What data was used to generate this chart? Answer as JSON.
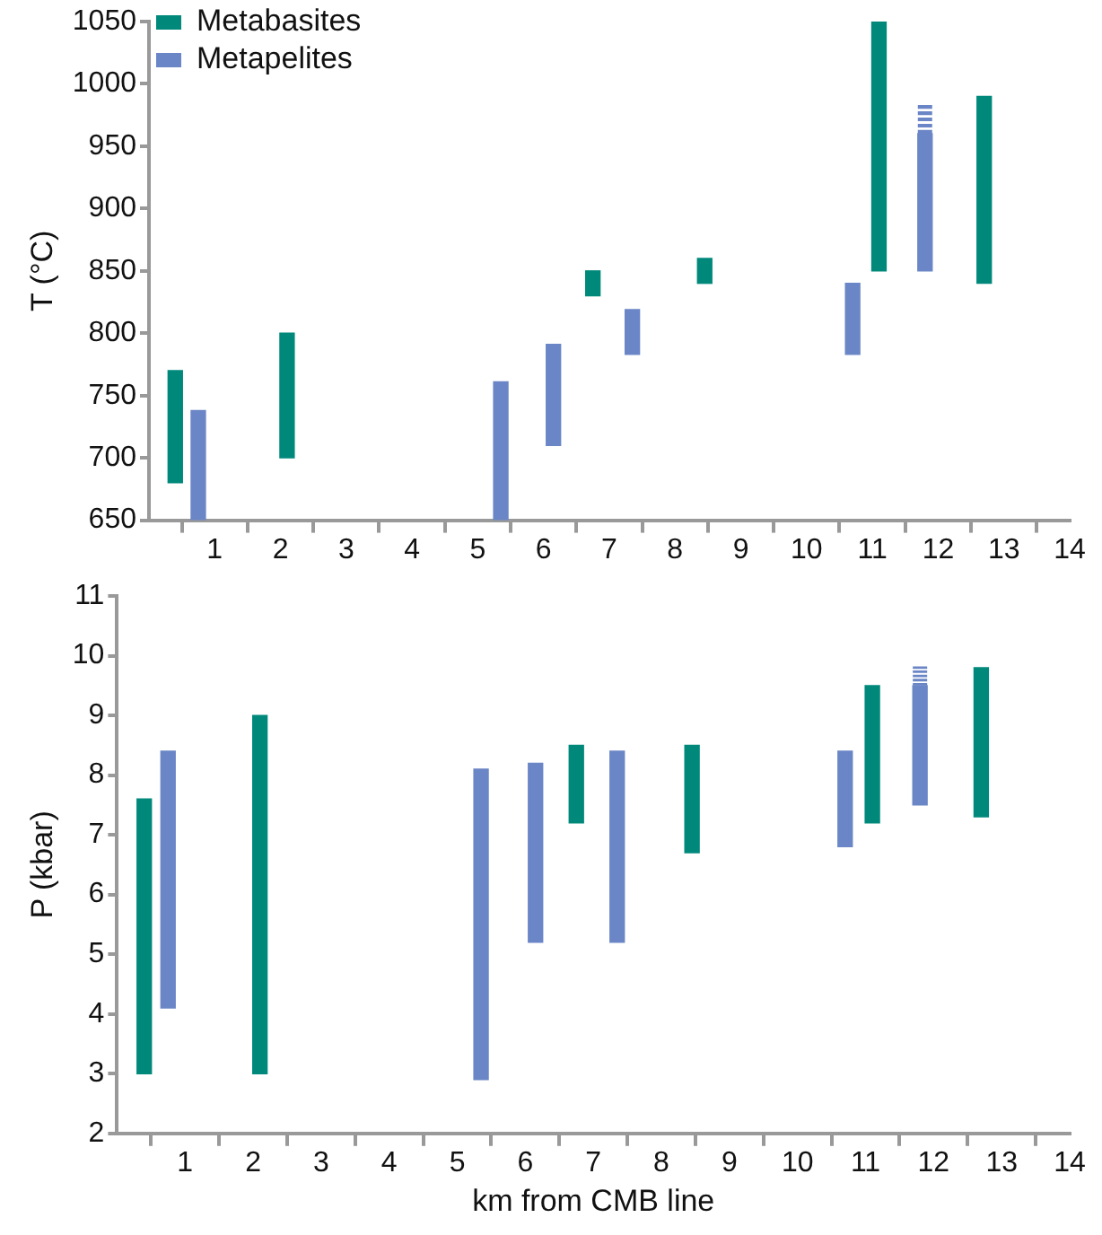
{
  "chart_data": [
    {
      "type": "bar",
      "ylabel": "T (°C)",
      "xlim": [
        0,
        14
      ],
      "xticks": [
        1,
        2,
        3,
        4,
        5,
        6,
        7,
        8,
        9,
        10,
        11,
        12,
        13,
        14
      ],
      "ylim": [
        650,
        1050
      ],
      "yticks": [
        650,
        700,
        750,
        800,
        850,
        900,
        950,
        1000,
        1050
      ],
      "grid": false,
      "legend": "top left",
      "series": [
        {
          "name": "Metabasites",
          "color": "#00897b",
          "x": [
            0.4,
            2.1,
            6.75,
            8.45,
            11.1,
            12.7
          ],
          "base": [
            680,
            700,
            830,
            840,
            850,
            840
          ],
          "values": [
            90,
            100,
            20,
            20,
            200,
            150
          ]
        },
        {
          "name": "Metapelites",
          "color": "#6b86c6",
          "x": [
            0.75,
            5.35,
            6.15,
            7.35,
            10.7,
            11.8
          ],
          "base": [
            650,
            650,
            710,
            783,
            783,
            850
          ],
          "values": [
            88,
            111,
            81,
            36,
            57,
            110
          ],
          "errors": [
            null,
            null,
            null,
            null,
            null,
            [
              960,
              985
            ]
          ]
        }
      ]
    },
    {
      "type": "bar",
      "ylabel": "P (kbar)",
      "xlabel": "km from CMB line",
      "xlim": [
        0,
        14
      ],
      "xticks": [
        1,
        2,
        3,
        4,
        5,
        6,
        7,
        8,
        9,
        10,
        11,
        12,
        13,
        14
      ],
      "ylim": [
        2,
        11
      ],
      "yticks": [
        2,
        3,
        4,
        5,
        6,
        7,
        8,
        9,
        10,
        11
      ],
      "grid": false,
      "series": [
        {
          "color": "#00897b",
          "x": [
            0.4,
            2.1,
            6.75,
            8.45,
            11.1,
            12.7
          ],
          "base": [
            3,
            3,
            7.2,
            6.7,
            7.2,
            7.3
          ],
          "values": [
            4.6,
            6,
            1.3,
            1.8,
            2.3,
            2.5
          ]
        },
        {
          "color": "#6b86c6",
          "x": [
            0.75,
            5.35,
            6.15,
            7.35,
            10.7,
            11.8
          ],
          "base": [
            4.1,
            2.9,
            5.2,
            5.2,
            6.8,
            7.5
          ],
          "values": [
            4.3,
            5.2,
            3,
            3.2,
            1.6,
            2
          ],
          "errors": [
            null,
            null,
            null,
            null,
            null,
            [
              9.5,
              9.85
            ]
          ]
        }
      ]
    }
  ]
}
